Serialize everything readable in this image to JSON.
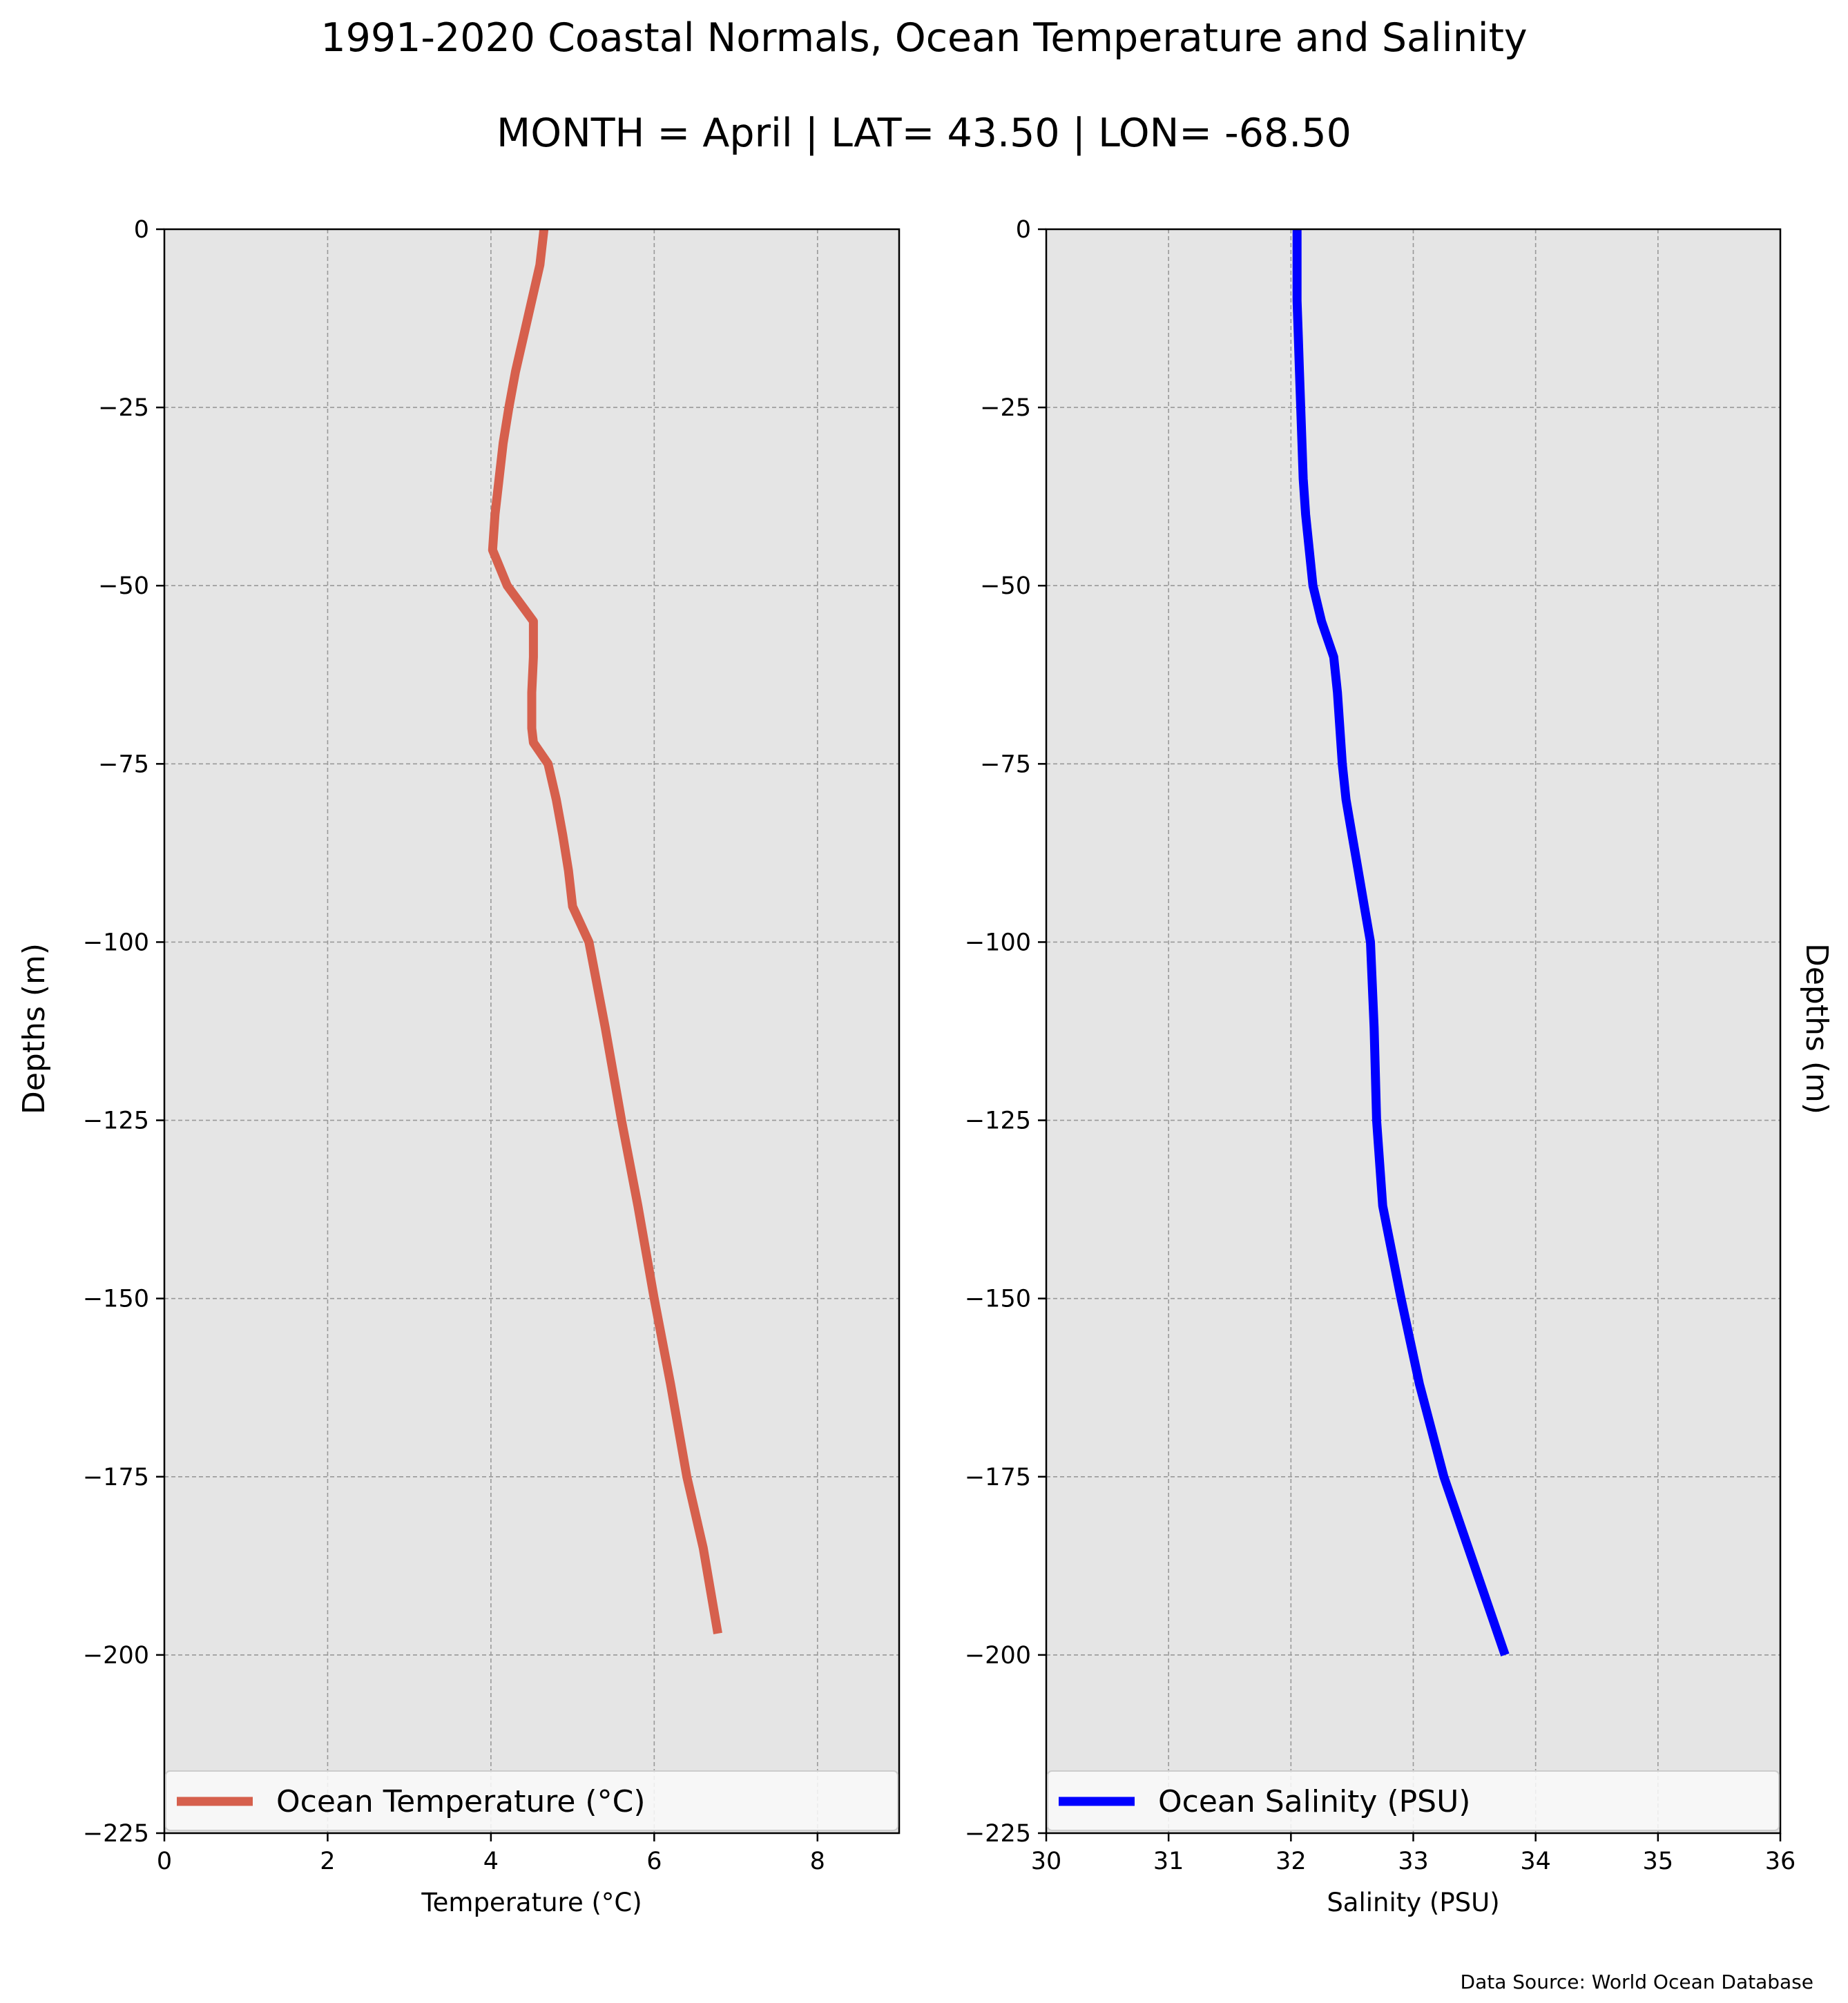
{
  "title": "1991-2020 Coastal Normals, Ocean Temperature and Salinity",
  "subtitle": "MONTH = April | LAT= 43.50 | LON= -68.50",
  "source": "Data Source: World Ocean Database",
  "colors": {
    "background": "#e5e5e5",
    "grid": "#999999",
    "temperature": "#d6604d",
    "salinity": "#0000ff"
  },
  "chart_data": [
    {
      "type": "line",
      "xlabel": "Temperature (°C)",
      "ylabel": "Depths (m)",
      "xlim": [
        0,
        9
      ],
      "ylim": [
        -225,
        0
      ],
      "xticks": [
        0,
        2,
        4,
        6,
        8
      ],
      "xtick_labels": [
        "0",
        "2",
        "4",
        "6",
        "8"
      ],
      "yticks": [
        0,
        -25,
        -50,
        -75,
        -100,
        -125,
        -150,
        -175,
        -200,
        -225
      ],
      "ytick_labels": [
        "0",
        "−25",
        "−50",
        "−75",
        "−100",
        "−125",
        "−150",
        "−175",
        "−200",
        "−225"
      ],
      "grid": true,
      "legend_position": "bottom",
      "series": [
        {
          "name": "Ocean Temperature (°C)",
          "color": "#d6604d",
          "x": [
            4.65,
            4.6,
            4.5,
            4.4,
            4.3,
            4.22,
            4.15,
            4.1,
            4.05,
            4.02,
            4.2,
            4.52,
            4.52,
            4.5,
            4.5,
            4.52,
            4.7,
            4.8,
            4.88,
            4.95,
            5.0,
            5.2,
            5.4,
            5.6,
            5.8,
            6.0,
            6.2,
            6.4,
            6.6,
            6.78
          ],
          "y": [
            0,
            -5,
            -10,
            -15,
            -20,
            -25,
            -30,
            -35,
            -40,
            -45,
            -50,
            -55,
            -60,
            -65,
            -70,
            -72,
            -75,
            -80,
            -85,
            -90,
            -95,
            -100,
            -112,
            -125,
            -137,
            -150,
            -162,
            -175,
            -185,
            -197
          ]
        }
      ]
    },
    {
      "type": "line",
      "xlabel": "Salinity (PSU)",
      "ylabel": "Depths (m)",
      "xlim": [
        30,
        36
      ],
      "ylim": [
        -225,
        0
      ],
      "xticks": [
        30,
        31,
        32,
        33,
        34,
        35,
        36
      ],
      "xtick_labels": [
        "30",
        "31",
        "32",
        "33",
        "34",
        "35",
        "36"
      ],
      "yticks": [
        0,
        -25,
        -50,
        -75,
        -100,
        -125,
        -150,
        -175,
        -200,
        -225
      ],
      "ytick_labels": [
        "0",
        "−25",
        "−50",
        "−75",
        "−100",
        "−125",
        "−150",
        "−175",
        "−200",
        "−225"
      ],
      "grid": true,
      "legend_position": "bottom",
      "series": [
        {
          "name": "Ocean Salinity (PSU)",
          "color": "#0000ff",
          "x": [
            32.05,
            32.05,
            32.05,
            32.06,
            32.07,
            32.08,
            32.09,
            32.1,
            32.12,
            32.15,
            32.18,
            32.25,
            32.35,
            32.38,
            32.4,
            32.42,
            32.45,
            32.5,
            32.55,
            32.6,
            32.65,
            32.68,
            32.7,
            32.75,
            32.9,
            33.05,
            33.25,
            33.45,
            33.65,
            33.75
          ],
          "y": [
            0,
            -5,
            -10,
            -15,
            -20,
            -25,
            -30,
            -35,
            -40,
            -45,
            -50,
            -55,
            -60,
            -65,
            -70,
            -75,
            -80,
            -85,
            -90,
            -95,
            -100,
            -112,
            -125,
            -137,
            -150,
            -162,
            -175,
            -185,
            -195,
            -200
          ]
        }
      ]
    }
  ]
}
